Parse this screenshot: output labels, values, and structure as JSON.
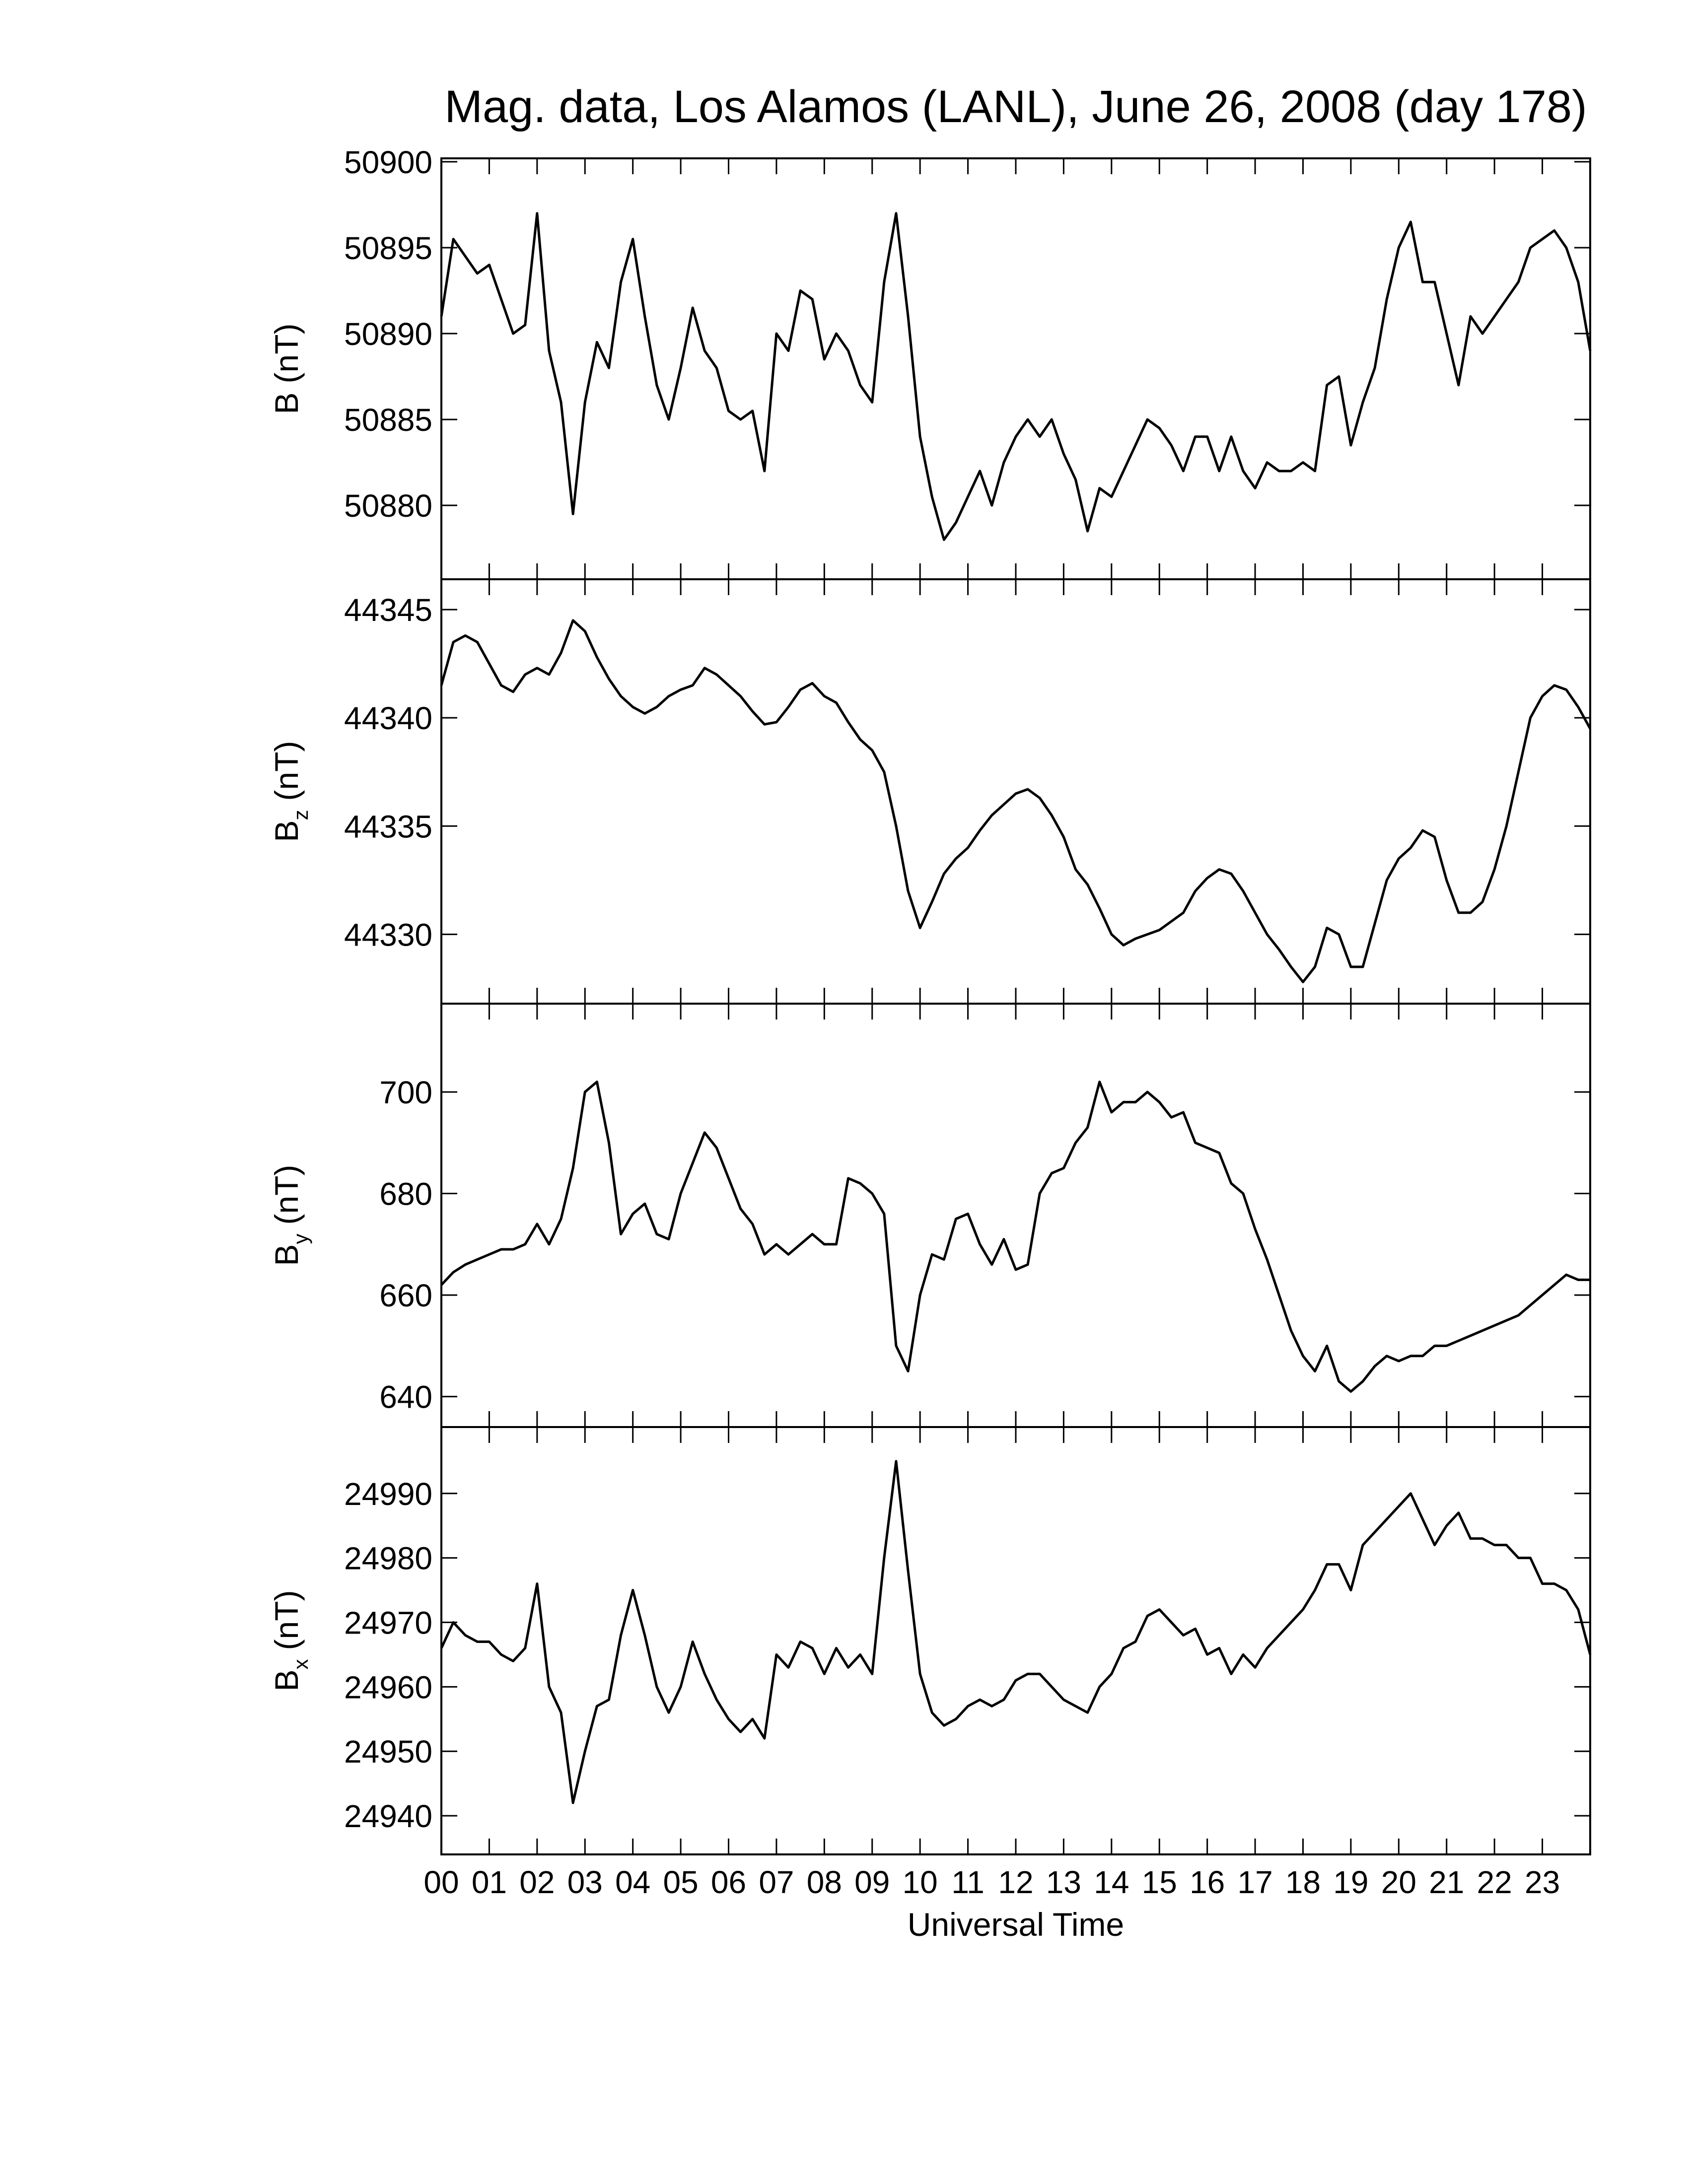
{
  "chart_data": {
    "type": "line",
    "title": "Mag. data, Los Alamos (LANL), June 26, 2008 (day 178)",
    "xlabel": "Universal Time",
    "xlim": [
      0,
      24
    ],
    "xticks": [
      {
        "value": 0,
        "label": "00"
      },
      {
        "value": 1,
        "label": "01"
      },
      {
        "value": 2,
        "label": "02"
      },
      {
        "value": 3,
        "label": "03"
      },
      {
        "value": 4,
        "label": "04"
      },
      {
        "value": 5,
        "label": "05"
      },
      {
        "value": 6,
        "label": "06"
      },
      {
        "value": 7,
        "label": "07"
      },
      {
        "value": 8,
        "label": "08"
      },
      {
        "value": 9,
        "label": "09"
      },
      10,
      11,
      12,
      13,
      14,
      15,
      16,
      17,
      18,
      19,
      20,
      21,
      22,
      23
    ],
    "x": [
      0,
      0.25,
      0.5,
      0.75,
      1,
      1.25,
      1.5,
      1.75,
      2,
      2.25,
      2.5,
      2.75,
      3,
      3.25,
      3.5,
      3.75,
      4,
      4.25,
      4.5,
      4.75,
      5,
      5.25,
      5.5,
      5.75,
      6,
      6.25,
      6.5,
      6.75,
      7,
      7.25,
      7.5,
      7.75,
      8,
      8.25,
      8.5,
      8.75,
      9,
      9.25,
      9.5,
      9.75,
      10,
      10.25,
      10.5,
      10.75,
      11,
      11.25,
      11.5,
      11.75,
      12,
      12.25,
      12.5,
      12.75,
      13,
      13.25,
      13.5,
      13.75,
      14,
      14.25,
      14.5,
      14.75,
      15,
      15.25,
      15.5,
      15.75,
      16,
      16.25,
      16.5,
      16.75,
      17,
      17.25,
      17.5,
      17.75,
      18,
      18.25,
      18.5,
      18.75,
      19,
      19.25,
      19.5,
      19.75,
      20,
      20.25,
      20.5,
      20.75,
      21,
      21.25,
      21.5,
      21.75,
      22,
      22.25,
      22.5,
      22.75,
      23,
      23.25,
      23.5,
      23.75,
      24
    ],
    "panels": [
      {
        "ylabel": {
          "symbol": "B",
          "unit": "(nT)"
        },
        "ylim": [
          50875.7,
          50900.2
        ],
        "yticks": [
          50880,
          50885,
          50890,
          50895,
          50900
        ],
        "color": "#000000",
        "values": [
          50891,
          50895.5,
          50894.5,
          50893.5,
          50894,
          50892,
          50890,
          50890.5,
          50897,
          50889,
          50886,
          50879.5,
          50886,
          50889.5,
          50888,
          50893,
          50895.5,
          50891,
          50887,
          50885,
          50888,
          50891.5,
          50889,
          50888,
          50885.5,
          50885,
          50885.5,
          50882,
          50890,
          50889,
          50892.5,
          50892,
          50888.5,
          50890,
          50889,
          50887,
          50886,
          50893,
          50897,
          50891,
          50884,
          50880.5,
          50878,
          50879,
          50880.5,
          50882,
          50880,
          50882.5,
          50884,
          50885,
          50884,
          50885,
          50883,
          50881.5,
          50878.5,
          50881,
          50880.5,
          50882,
          50883.5,
          50885,
          50884.5,
          50883.5,
          50882,
          50884,
          50884,
          50882,
          50884,
          50882,
          50881,
          50882.5,
          50882,
          50882,
          50882.5,
          50882,
          50887,
          50887.5,
          50883.5,
          50886,
          50888,
          50892,
          50895,
          50896.5,
          50893,
          50893,
          50890,
          50887,
          50891,
          50890,
          50891,
          50892,
          50893,
          50895,
          50895.5,
          50896,
          50895,
          50893,
          50889
        ]
      },
      {
        "ylabel": {
          "symbol": "B",
          "subscript": "z",
          "unit": "(nT)"
        },
        "ylim": [
          44326.8,
          44346.4
        ],
        "yticks": [
          44330,
          44335,
          44340,
          44345
        ],
        "color": "#000000",
        "values": [
          44341.5,
          44343.5,
          44343.8,
          44343.5,
          44342.5,
          44341.5,
          44341.2,
          44342,
          44342.3,
          44342,
          44343,
          44344.5,
          44344,
          44342.8,
          44341.8,
          44341,
          44340.5,
          44340.2,
          44340.5,
          44341,
          44341.3,
          44341.5,
          44342.3,
          44342,
          44341.5,
          44341,
          44340.3,
          44339.7,
          44339.8,
          44340.5,
          44341.3,
          44341.6,
          44341,
          44340.7,
          44339.8,
          44339,
          44338.5,
          44337.5,
          44335,
          44332,
          44330.3,
          44331.5,
          44332.8,
          44333.5,
          44334,
          44334.8,
          44335.5,
          44336,
          44336.5,
          44336.7,
          44336.3,
          44335.5,
          44334.5,
          44333,
          44332.3,
          44331.2,
          44330,
          44329.5,
          44329.8,
          44330,
          44330.2,
          44330.6,
          44331,
          44332,
          44332.6,
          44333,
          44332.8,
          44332,
          44331,
          44330,
          44329.3,
          44328.5,
          44327.8,
          44328.5,
          44330.3,
          44330,
          44328.5,
          44328.5,
          44330.5,
          44332.5,
          44333.5,
          44334,
          44334.8,
          44334.5,
          44332.5,
          44331,
          44331,
          44331.5,
          44333,
          44335,
          44337.5,
          44340,
          44341,
          44341.5,
          44341.3,
          44340.5,
          44339.5
        ]
      },
      {
        "ylabel": {
          "symbol": "B",
          "subscript": "y",
          "unit": "(nT)"
        },
        "ylim": [
          634,
          717.4
        ],
        "yticks": [
          640,
          660,
          680,
          700
        ],
        "color": "#000000",
        "values": [
          662,
          664.5,
          666,
          667,
          668,
          669,
          669,
          670,
          674,
          670,
          675,
          685,
          700,
          702,
          690,
          672,
          676,
          678,
          672,
          671,
          680,
          686,
          692,
          689,
          683,
          677,
          674,
          668,
          670,
          668,
          670,
          672,
          670,
          670,
          683,
          682,
          680,
          676,
          650,
          645,
          660,
          668,
          667,
          675,
          676,
          670,
          666,
          671,
          665,
          666,
          680,
          684,
          685,
          690,
          693,
          702,
          696,
          698,
          698,
          700,
          698,
          695,
          696,
          690,
          689,
          688,
          682,
          680,
          673,
          667,
          660,
          653,
          648,
          645,
          650,
          643,
          641,
          643,
          646,
          648,
          647,
          648,
          648,
          650,
          650,
          651,
          652,
          653,
          654,
          655,
          656,
          658,
          660,
          662,
          664,
          663,
          663
        ]
      },
      {
        "ylabel": {
          "symbol": "B",
          "subscript": "x",
          "unit": "(nT)"
        },
        "ylim": [
          24934,
          25000.3
        ],
        "yticks": [
          24940,
          24950,
          24960,
          24970,
          24980,
          24990
        ],
        "color": "#000000",
        "values": [
          24966,
          24970,
          24968,
          24967,
          24967,
          24965,
          24964,
          24966,
          24976,
          24960,
          24956,
          24942,
          24950,
          24957,
          24958,
          24968,
          24975,
          24968,
          24960,
          24956,
          24960,
          24967,
          24962,
          24958,
          24955,
          24953,
          24955,
          24952,
          24965,
          24963,
          24967,
          24966,
          24962,
          24966,
          24963,
          24965,
          24962,
          24980,
          24995,
          24978,
          24962,
          24956,
          24954,
          24955,
          24957,
          24958,
          24957,
          24958,
          24961,
          24962,
          24962,
          24960,
          24958,
          24957,
          24956,
          24960,
          24962,
          24966,
          24967,
          24971,
          24972,
          24970,
          24968,
          24969,
          24965,
          24966,
          24962,
          24965,
          24963,
          24966,
          24968,
          24970,
          24972,
          24975,
          24979,
          24979,
          24975,
          24982,
          24984,
          24986,
          24988,
          24990,
          24986,
          24982,
          24985,
          24987,
          24983,
          24983,
          24982,
          24982,
          24980,
          24980,
          24976,
          24976,
          24975,
          24972,
          24965
        ]
      }
    ]
  }
}
